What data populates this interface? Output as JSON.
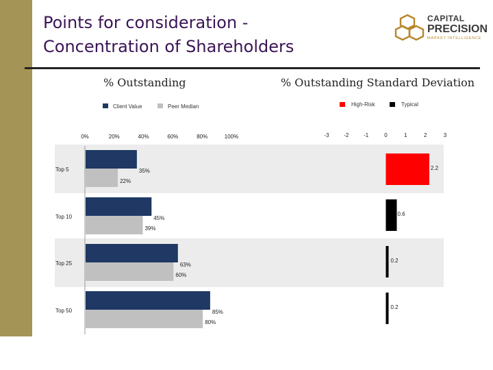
{
  "slide": {
    "title_line1": "Points for consideration -",
    "title_line2": "Concentration of Shareholders"
  },
  "logo": {
    "line1": "CAPITAL",
    "line2": "PRECISION",
    "line3": "MARKET INTELLIGENCE"
  },
  "colors": {
    "sidebar": "#a49456",
    "client": "#1f3864",
    "peer": "#c0c0c0",
    "high_risk": "#ff0000",
    "typical": "#000000",
    "band": "#ececec",
    "title": "#3b1455"
  },
  "chart_data": [
    {
      "type": "bar",
      "orientation": "horizontal",
      "title": "% Outstanding",
      "categories": [
        "Top 5",
        "Top 10",
        "Top 25",
        "Top 50"
      ],
      "series": [
        {
          "name": "Client Value",
          "values": [
            35,
            45,
            63,
            85
          ],
          "labels": [
            "35%",
            "45%",
            "63%",
            "85%"
          ]
        },
        {
          "name": "Peer Median",
          "values": [
            22,
            39,
            60,
            80
          ],
          "labels": [
            "22%",
            "39%",
            "60%",
            "80%"
          ]
        }
      ],
      "xlim": [
        0,
        100
      ],
      "xticks": [
        "0%",
        "20%",
        "40%",
        "60%",
        "80%",
        "100%"
      ],
      "legend": "top-center"
    },
    {
      "type": "bar",
      "orientation": "horizontal",
      "title": "% Outstanding Standard Deviation",
      "categories": [
        "Top 5",
        "Top 10",
        "Top 25",
        "Top 50"
      ],
      "values": [
        2.2,
        0.6,
        0.2,
        0.2
      ],
      "labels": [
        "2.2",
        "0.6",
        "0.2",
        "0.2"
      ],
      "risk": [
        "High-Risk",
        "Typical",
        "Typical",
        "Typical"
      ],
      "series_names": [
        "High-Risk",
        "Typical"
      ],
      "xlim": [
        -3,
        3
      ],
      "xticks": [
        "-3",
        "-2",
        "-1",
        "0",
        "1",
        "2",
        "3"
      ],
      "legend": "top-right"
    }
  ]
}
